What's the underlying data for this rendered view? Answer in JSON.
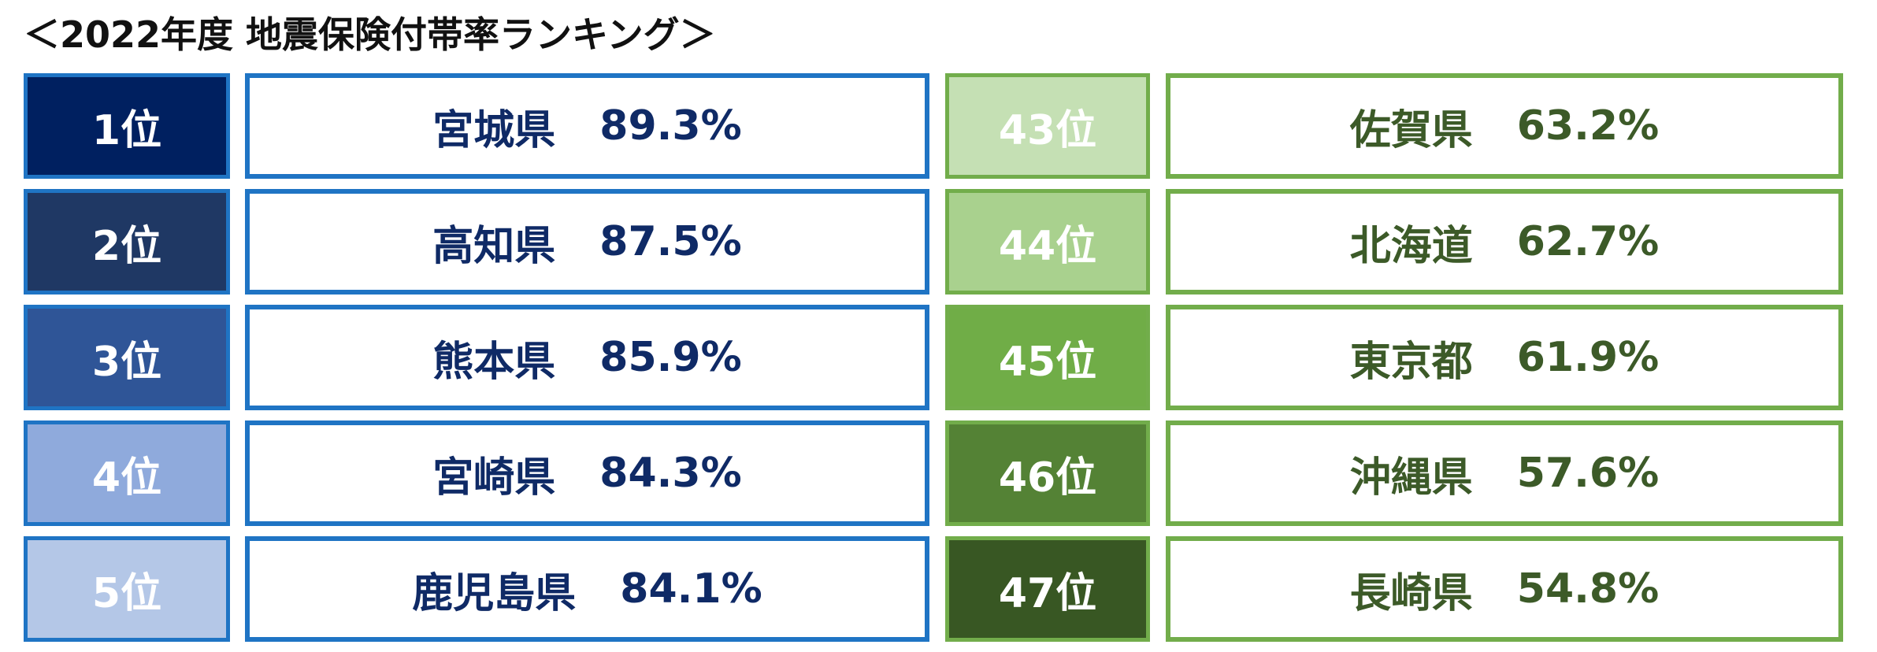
{
  "title": "＜2022年度 地震保険付帯率ランキング＞",
  "colors": {
    "top_border": "#1f74c4",
    "top_text": "#0f2a66",
    "bottom_border": "#72ad4b",
    "bottom_text": "#3c5a28"
  },
  "top_ranking": [
    {
      "rank": "1位",
      "prefecture": "宮城県",
      "rate": "89.3%",
      "color": "#002060"
    },
    {
      "rank": "2位",
      "prefecture": "高知県",
      "rate": "87.5%",
      "color": "#1f3864"
    },
    {
      "rank": "3位",
      "prefecture": "熊本県",
      "rate": "85.9%",
      "color": "#2f5597"
    },
    {
      "rank": "4位",
      "prefecture": "宮崎県",
      "rate": "84.3%",
      "color": "#8faadc"
    },
    {
      "rank": "5位",
      "prefecture": "鹿児島県",
      "rate": "84.1%",
      "color": "#b4c7e7"
    }
  ],
  "bottom_ranking": [
    {
      "rank": "43位",
      "prefecture": "佐賀県",
      "rate": "63.2%",
      "color": "#c5e0b4"
    },
    {
      "rank": "44位",
      "prefecture": "北海道",
      "rate": "62.7%",
      "color": "#a9d18e"
    },
    {
      "rank": "45位",
      "prefecture": "東京都",
      "rate": "61.9%",
      "color": "#70ad47"
    },
    {
      "rank": "46位",
      "prefecture": "沖縄県",
      "rate": "57.6%",
      "color": "#548235"
    },
    {
      "rank": "47位",
      "prefecture": "長崎県",
      "rate": "54.8%",
      "color": "#385723"
    }
  ]
}
